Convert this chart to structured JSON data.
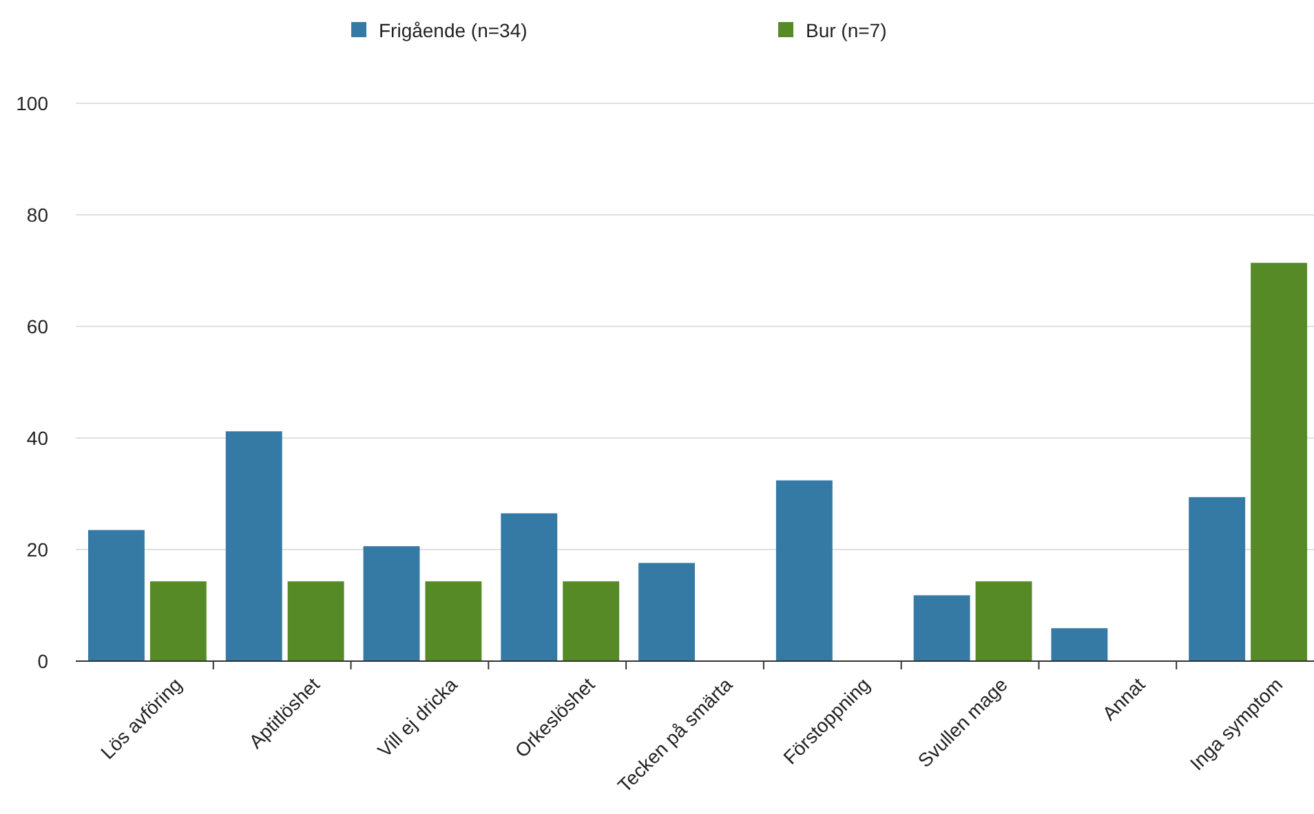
{
  "chart_data": {
    "type": "bar",
    "categories": [
      "Lös avföring",
      "Aptitlöshet",
      "Vill ej dricka",
      "Orkeslöshet",
      "Tecken på smärta",
      "Förstoppning",
      "Svullen mage",
      "Annat",
      "Inga symptom"
    ],
    "series": [
      {
        "name": "Frigående (n=34)",
        "color": "#3579a5",
        "values": [
          23.5,
          41.2,
          20.6,
          26.5,
          17.6,
          32.4,
          11.8,
          5.9,
          29.4
        ]
      },
      {
        "name": "Bur (n=7)",
        "color": "#568a26",
        "values": [
          14.3,
          14.3,
          14.3,
          14.3,
          0,
          0,
          14.3,
          0,
          71.4
        ]
      }
    ],
    "ylim": [
      0,
      100
    ],
    "yticks": [
      0,
      20,
      40,
      60,
      80,
      100
    ],
    "grid": "y",
    "legend": "top"
  }
}
